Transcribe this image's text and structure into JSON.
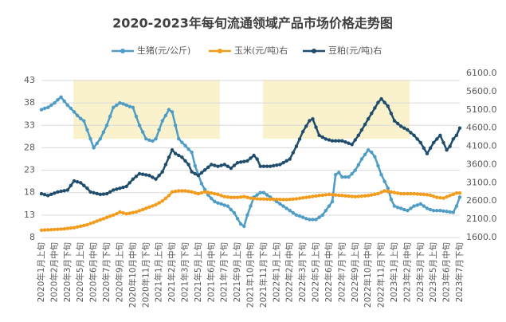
{
  "chart_data": {
    "type": "line",
    "title": "2020-2023年每旬流通领域产品市场价格走势图",
    "categories": [
      "2020年1月上旬",
      null,
      null,
      null,
      "2020年2月中旬",
      null,
      null,
      null,
      "2020年3月下旬",
      null,
      null,
      null,
      "2020年5月上旬",
      null,
      null,
      null,
      "2020年6月中旬",
      null,
      null,
      null,
      "2020年7月下旬",
      null,
      null,
      null,
      "2020年9月上旬",
      null,
      null,
      null,
      "2020年10月中旬",
      null,
      null,
      null,
      "2020年11月下旬",
      null,
      null,
      null,
      "2021年1月上旬",
      null,
      null,
      null,
      "2021年2月中旬",
      null,
      null,
      null,
      "2021年3月下旬",
      null,
      null,
      null,
      "2021年5月上旬",
      null,
      null,
      null,
      "2021年6月中旬",
      null,
      null,
      null,
      "2021年7月下旬",
      null,
      null,
      null,
      "2021年9月上旬",
      null,
      null,
      null,
      "2021年10月中旬",
      null,
      null,
      null,
      "2021年11月下旬",
      null,
      null,
      null,
      "2022年1月上旬",
      null,
      null,
      null,
      "2022年2月中旬",
      null,
      null,
      null,
      "2022年3月下旬",
      null,
      null,
      null,
      "2022年5月上旬",
      null,
      null,
      null,
      "2022年6月中旬",
      null,
      null,
      null,
      "2022年7月下旬",
      null,
      null,
      null,
      "2022年9月上旬",
      null,
      null,
      null,
      "2022年10月中旬",
      null,
      null,
      null,
      "2022年11月下旬",
      null,
      null,
      null,
      "2023年1月上旬",
      null,
      null,
      null,
      "2023年2月中旬",
      null,
      null,
      null,
      "2023年3月下旬",
      null,
      null,
      null,
      "2023年5月上旬",
      null,
      null,
      null,
      "2023年6月中旬",
      null,
      null,
      null,
      "2023年7月下旬"
    ],
    "series": [
      {
        "name": "生猪(元/公斤)",
        "color": "#4f9cc5",
        "axis": "y",
        "values": [
          36.5,
          36.8,
          37,
          37.5,
          38,
          38.7,
          39.3,
          38.4,
          37.5,
          36.8,
          36,
          35.2,
          34.5,
          34,
          32,
          30,
          28,
          29,
          30,
          31.5,
          33,
          35,
          37,
          37.5,
          38,
          37.8,
          37.5,
          37.2,
          37,
          35,
          33,
          31.5,
          30,
          29.7,
          29.5,
          30,
          32,
          34,
          35.2,
          36.5,
          36,
          33,
          30,
          29.2,
          28.5,
          27.7,
          27,
          24,
          22,
          20,
          18.7,
          17.5,
          16.7,
          16,
          15.7,
          15.5,
          15.2,
          15,
          14.2,
          13.5,
          12.2,
          11,
          10.5,
          13,
          15,
          17,
          17.5,
          18,
          18,
          17.5,
          17,
          16.5,
          16,
          15.5,
          15,
          14.5,
          14,
          13.5,
          13,
          12.8,
          12.5,
          12.2,
          12,
          12,
          12,
          12.5,
          13,
          14,
          15,
          16,
          22,
          22.5,
          21.5,
          21.5,
          21.5,
          22.2,
          23,
          24.2,
          25.5,
          26.5,
          27.5,
          27,
          26,
          24,
          22,
          20.5,
          19,
          16.5,
          15,
          14.7,
          14.5,
          14.2,
          14,
          14.5,
          15,
          15.2,
          15.5,
          15,
          14.5,
          14.2,
          14,
          14,
          14,
          13.9,
          13.8,
          13.7,
          13.6,
          15,
          17
        ]
      },
      {
        "name": "玉米(元/吨)右",
        "color": "#f39b1b",
        "axis": "y2",
        "values": [
          1800,
          1805,
          1810,
          1815,
          1820,
          1825,
          1830,
          1840,
          1850,
          1860,
          1870,
          1890,
          1910,
          1930,
          1950,
          1985,
          2015,
          2050,
          2085,
          2115,
          2150,
          2185,
          2215,
          2250,
          2300,
          2275,
          2250,
          2265,
          2285,
          2300,
          2335,
          2365,
          2400,
          2435,
          2465,
          2500,
          2550,
          2600,
          2675,
          2750,
          2850,
          2865,
          2880,
          2880,
          2880,
          2865,
          2850,
          2825,
          2800,
          2825,
          2850,
          2835,
          2820,
          2800,
          2780,
          2750,
          2720,
          2710,
          2700,
          2700,
          2700,
          2710,
          2720,
          2700,
          2680,
          2670,
          2660,
          2655,
          2655,
          2650,
          2650,
          2648,
          2646,
          2644,
          2642,
          2640,
          2647,
          2653,
          2660,
          2673,
          2687,
          2700,
          2712,
          2725,
          2737,
          2750,
          2760,
          2770,
          2780,
          2772,
          2765,
          2757,
          2750,
          2742,
          2735,
          2727,
          2720,
          2727,
          2735,
          2742,
          2750,
          2767,
          2783,
          2800,
          2840,
          2880,
          2865,
          2850,
          2833,
          2817,
          2800,
          2800,
          2800,
          2800,
          2800,
          2793,
          2787,
          2780,
          2770,
          2760,
          2730,
          2700,
          2690,
          2680,
          2715,
          2750,
          2785,
          2820,
          2820
        ]
      },
      {
        "name": "豆粕(元/吨)右",
        "color": "#1f4d6b",
        "axis": "y2",
        "values": [
          2800,
          2775,
          2750,
          2783,
          2817,
          2850,
          2867,
          2883,
          2900,
          3025,
          3150,
          3125,
          3100,
          3025,
          2950,
          2850,
          2827,
          2803,
          2780,
          2790,
          2800,
          2850,
          2900,
          2925,
          2950,
          2975,
          3000,
          3100,
          3200,
          3275,
          3350,
          3333,
          3317,
          3300,
          3250,
          3200,
          3300,
          3400,
          3600,
          3800,
          4000,
          3900,
          3850,
          3800,
          3700,
          3600,
          3400,
          3350,
          3300,
          3375,
          3450,
          3525,
          3600,
          3575,
          3550,
          3575,
          3600,
          3550,
          3500,
          3575,
          3650,
          3667,
          3683,
          3700,
          3775,
          3850,
          3750,
          3550,
          3550,
          3550,
          3550,
          3567,
          3583,
          3600,
          3650,
          3700,
          3750,
          3925,
          4100,
          4300,
          4500,
          4650,
          4800,
          4850,
          4625,
          4400,
          4350,
          4300,
          4275,
          4250,
          4250,
          4250,
          4250,
          4217,
          4183,
          4150,
          4275,
          4400,
          4550,
          4700,
          4850,
          5000,
          5150,
          5300,
          5400,
          5300,
          5200,
          5000,
          4800,
          4725,
          4650,
          4600,
          4550,
          4475,
          4400,
          4300,
          4200,
          4050,
          3900,
          4050,
          4200,
          4300,
          4400,
          4200,
          4000,
          4100,
          4300,
          4400,
          4600
        ]
      }
    ],
    "ylim": [
      8,
      43
    ],
    "yticks": [
      8,
      13,
      18,
      23,
      28,
      33,
      38,
      43
    ],
    "y2lim": [
      1600,
      6100
    ],
    "y2ticks": [
      {
        "value": 1600,
        "label": "1600.0"
      },
      {
        "value": 2100,
        "label": "2100.0"
      },
      {
        "value": 2600,
        "label": "2600.0"
      },
      {
        "value": 3100,
        "label": "3100.0"
      },
      {
        "value": 3600,
        "label": "3600.0"
      },
      {
        "value": 4100,
        "label": "4100.0"
      },
      {
        "value": 4600,
        "label": "4600.0"
      },
      {
        "value": 5100,
        "label": "5100.0"
      },
      {
        "value": 5600,
        "label": "5600.0"
      },
      {
        "value": 6100,
        "label": "6100.0"
      }
    ],
    "grid": true
  }
}
